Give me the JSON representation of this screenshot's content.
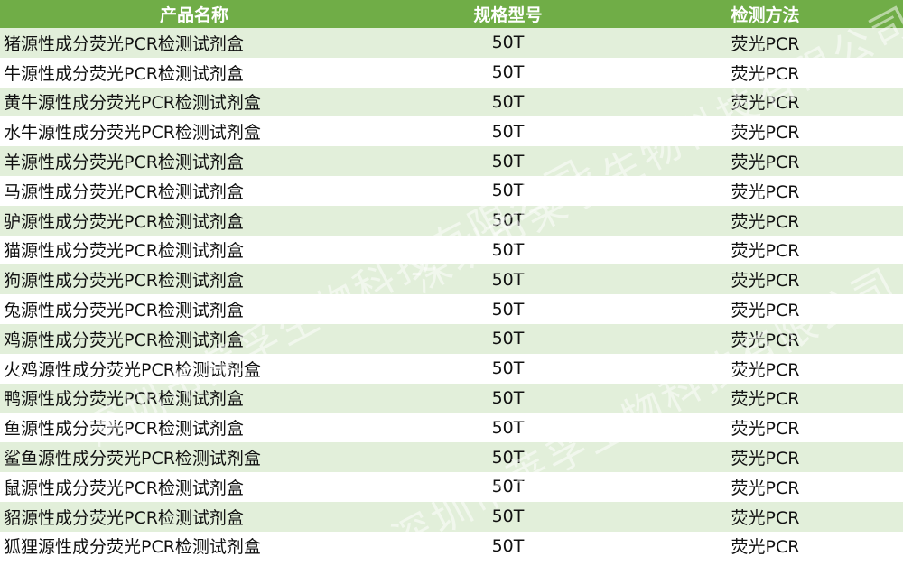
{
  "table": {
    "headers": [
      "产品名称",
      "规格型号",
      "检测方法"
    ],
    "rows": [
      [
        "猪源性成分荧光PCR检测试剂盒",
        "50T",
        "荧光PCR"
      ],
      [
        "牛源性成分荧光PCR检测试剂盒",
        "50T",
        "荧光PCR"
      ],
      [
        "黄牛源性成分荧光PCR检测试剂盒",
        "50T",
        "荧光PCR"
      ],
      [
        "水牛源性成分荧光PCR检测试剂盒",
        "50T",
        "荧光PCR"
      ],
      [
        "羊源性成分荧光PCR检测试剂盒",
        "50T",
        "荧光PCR"
      ],
      [
        "马源性成分荧光PCR检测试剂盒",
        "50T",
        "荧光PCR"
      ],
      [
        "驴源性成分荧光PCR检测试剂盒",
        "50T",
        "荧光PCR"
      ],
      [
        "猫源性成分荧光PCR检测试剂盒",
        "50T",
        "荧光PCR"
      ],
      [
        "狗源性成分荧光PCR检测试剂盒",
        "50T",
        "荧光PCR"
      ],
      [
        "兔源性成分荧光PCR检测试剂盒",
        "50T",
        "荧光PCR"
      ],
      [
        "鸡源性成分荧光PCR检测试剂盒",
        "50T",
        "荧光PCR"
      ],
      [
        "火鸡源性成分荧光PCR检测试剂盒",
        "50T",
        "荧光PCR"
      ],
      [
        "鸭源性成分荧光PCR检测试剂盒",
        "50T",
        "荧光PCR"
      ],
      [
        "鱼源性成分荧光PCR检测试剂盒",
        "50T",
        "荧光PCR"
      ],
      [
        "鲨鱼源性成分荧光PCR检测试剂盒",
        "50T",
        "荧光PCR"
      ],
      [
        "鼠源性成分荧光PCR检测试剂盒",
        "50T",
        "荧光PCR"
      ],
      [
        "貂源性成分荧光PCR检测试剂盒",
        "50T",
        "荧光PCR"
      ],
      [
        "狐狸源性成分荧光PCR检测试剂盒",
        "50T",
        "荧光PCR"
      ]
    ]
  },
  "watermark": "深圳市莱孚生物科技有限公司",
  "colors": {
    "header_bg": "#70ad47",
    "row_alt_bg": "#e2efda"
  }
}
